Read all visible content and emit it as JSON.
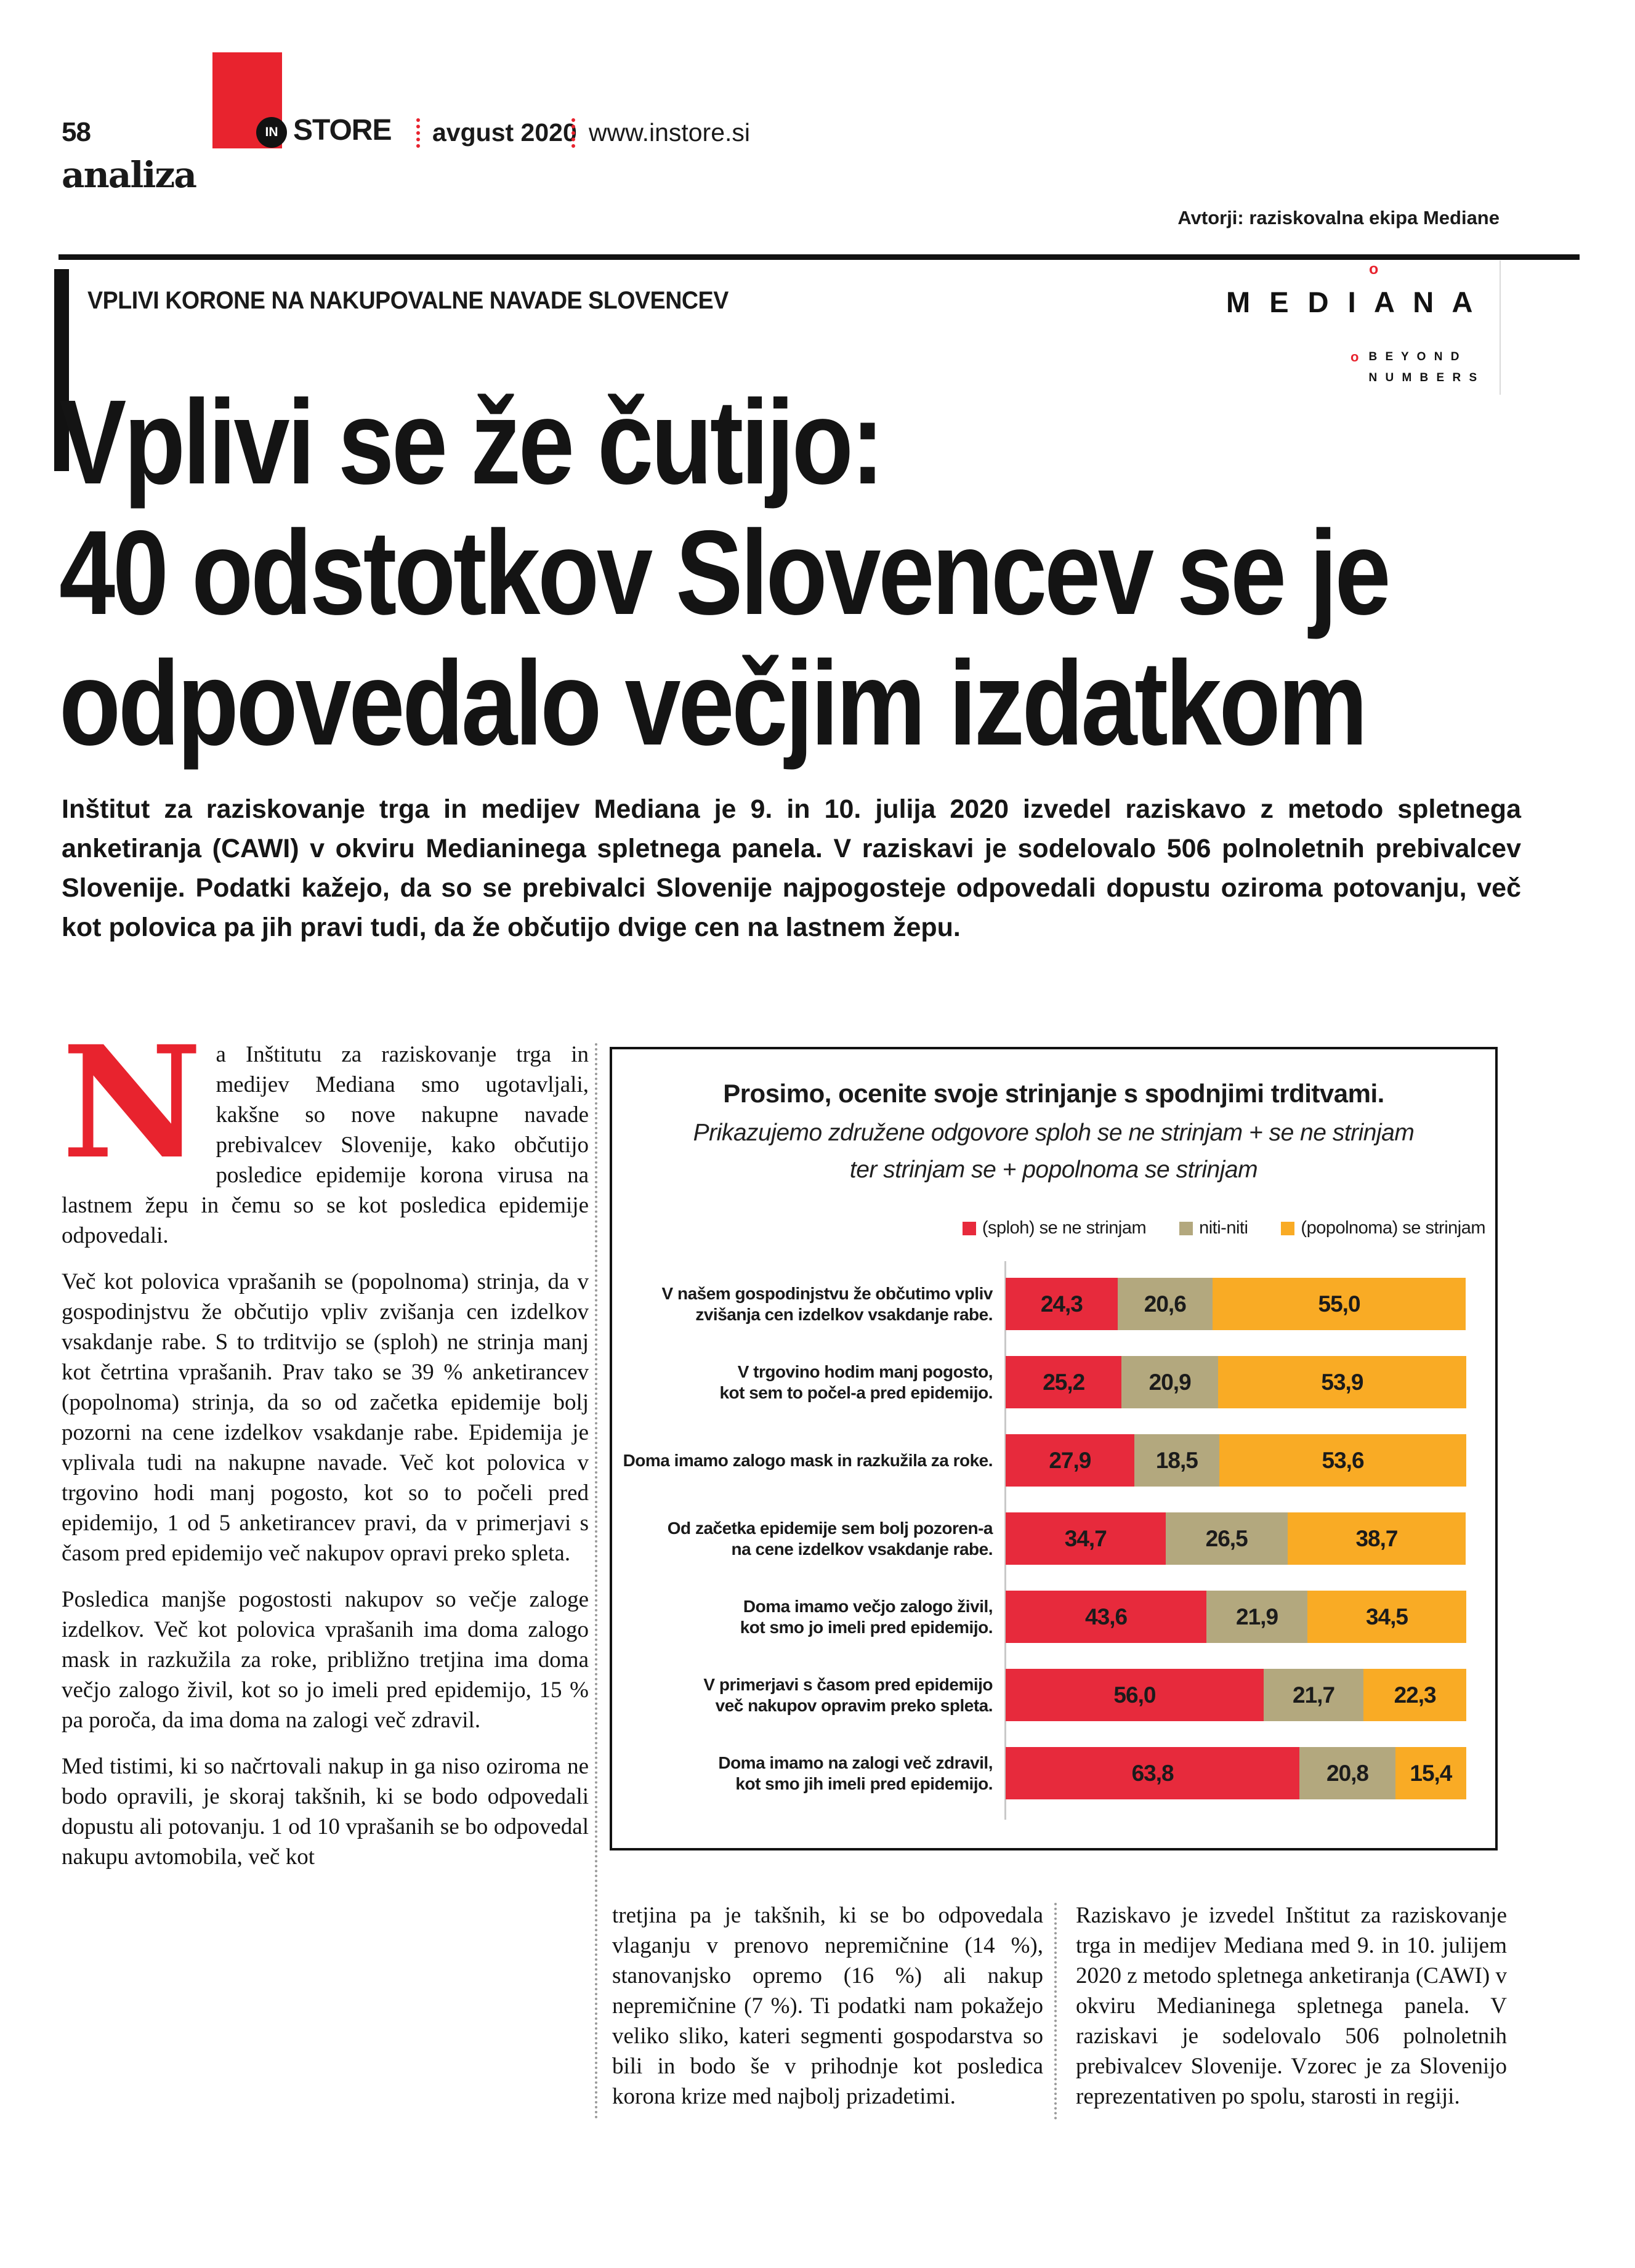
{
  "colors": {
    "brand_red": "#e8232e",
    "bar_red": "#e72a3c",
    "bar_khaki": "#b3a87e",
    "bar_orange": "#f9ab25",
    "ink": "#1a1a1a"
  },
  "header": {
    "page_number": "58",
    "brand_in": "IN",
    "brand_store": "STORE",
    "issue": "avgust 2020",
    "website": "www.instore.si",
    "section": "analiza",
    "authors": "Avtorji: raziskovalna ekipa Mediane"
  },
  "kicker": "VPLIVI KORONE NA NAKUPOVALNE NAVADE SLOVENCEV",
  "mediana_logo": {
    "dot": "o",
    "name_letters": "M E D I A N A",
    "tagline_line1": "B E Y O N D",
    "tagline_line2": "N U M B E R S"
  },
  "headline": {
    "line1": "Vplivi se že čutijo:",
    "line2": "40 odstotkov Slovencev se je",
    "line3": "odpovedalo večjim izdatkom"
  },
  "lead": "Inštitut za raziskovanje trga in medijev Mediana je 9. in 10. julija 2020 izvedel raziskavo z metodo spletnega anketiranja (CAWI) v okviru Medianinega spletnega panela. V raziskavi je sodelovalo 506 polnoletnih prebivalcev Slovenije. Podatki kažejo, da so se prebivalci Slovenije najpogosteje odpovedali dopustu oziroma potovanju, več kot polovica pa jih pravi tudi, da že občutijo dvige cen na lastnem žepu.",
  "article": {
    "dropcap": "N",
    "p1": "a Inštitutu za raziskovanje trga in medijev Mediana smo ugotavljali, kakšne so nove nakupne navade prebivalcev Slovenije, kako občutijo posledice epidemije korona virusa na lastnem žepu in čemu so se kot posledica epidemije odpovedali.",
    "p2": "Več kot polovica vprašanih se (popolnoma) strinja, da v gospodinjstvu že občutijo vpliv zvišanja cen izdelkov vsakdanje rabe. S to trditvijo se (sploh) ne strinja manj kot četrtina vprašanih. Prav tako se 39 % anketirancev (popolnoma) strinja, da so od začetka epidemije bolj pozorni na cene izdelkov vsakdanje rabe. Epidemija je vplivala tudi na nakupne navade. Več kot polovica v trgovino hodi manj pogosto, kot so to počeli pred epidemijo, 1 od 5 anketirancev pravi, da v primerjavi s časom pred epidemijo več nakupov opravi preko spleta.",
    "p3": "Posledica manjše pogostosti nakupov so večje zaloge izdelkov. Več kot polovica vprašanih ima doma zalogo mask in razkužila za roke, približno tretjina ima doma večjo zalogo živil, kot so jo imeli pred epidemijo, 15 % pa poroča, da ima doma na zalogi več zdravil.",
    "p4": "Med tistimi, ki so načrtovali nakup in ga niso oziroma ne bodo opravili, je skoraj takšnih, ki se bodo odpovedali dopustu ali potovanju. 1 od 10 vprašanih se bo odpovedal nakupu avtomobila, več kot",
    "bottom_middle": "tretjina pa je takšnih, ki se bo odpovedala vlaganju v prenovo nepremičnine (14 %), stanovanjsko opremo (16 %) ali nakup nepremičnine (7 %). Ti podatki nam pokažejo veliko sliko, kateri segmenti gospodarstva so bili in bodo še v prihodnje kot posledica korona krize med najbolj prizadetimi.",
    "bottom_right": "Raziskavo je izvedel Inštitut za raziskovanje trga in medijev Mediana med 9. in 10. julijem 2020 z metodo spletnega anketiranja (CAWI) v okviru Medianinega spletnega panela. V raziskavi je sodelovalo 506 polnoletnih prebivalcev Slovenije. Vzorec je za Slovenijo reprezentativen po spolu, starosti in regiji."
  },
  "chart_data": {
    "type": "bar",
    "orientation": "horizontal_stacked",
    "title": "Prosimo, ocenite svoje strinjanje s spodnjimi trditvami.",
    "subtitle_lines": [
      "Prikazujemo združene odgovore sploh se ne strinjam + se ne strinjam",
      "ter strinjam se + popolnoma se strinjam"
    ],
    "legend_position": "top-right",
    "xlim": [
      0,
      100
    ],
    "unit": "%",
    "grid": false,
    "legend": [
      {
        "label": "(sploh) se ne strinjam",
        "color": "#e72a3c"
      },
      {
        "label": "niti-niti",
        "color": "#b3a87e"
      },
      {
        "label": "(popolnoma) se strinjam",
        "color": "#f9ab25"
      }
    ],
    "categories": [
      [
        "V našem gospodinjstvu že občutimo vpliv",
        "zvišanja cen izdelkov vsakdanje rabe."
      ],
      [
        "V trgovino hodim manj pogosto,",
        "kot sem to počel-a pred epidemijo."
      ],
      [
        "Doma imamo zalogo mask in razkužila za roke."
      ],
      [
        "Od začetka epidemije sem bolj pozoren-a",
        "na cene izdelkov vsakdanje rabe."
      ],
      [
        "Doma imamo večjo zalogo živil,",
        "kot smo jo imeli pred epidemijo."
      ],
      [
        "V primerjavi s časom pred epidemijo",
        "več nakupov opravim preko spleta."
      ],
      [
        "Doma imamo na zalogi več zdravil,",
        "kot smo jih imeli pred epidemijo."
      ]
    ],
    "series": [
      {
        "name": "(sploh) se ne strinjam",
        "color": "#e72a3c",
        "values": [
          24.3,
          25.2,
          27.9,
          34.7,
          43.6,
          56.0,
          63.8
        ]
      },
      {
        "name": "niti-niti",
        "color": "#b3a87e",
        "values": [
          20.6,
          20.9,
          18.5,
          26.5,
          21.9,
          21.7,
          20.8
        ]
      },
      {
        "name": "(popolnoma) se strinjam",
        "color": "#f9ab25",
        "values": [
          55.0,
          53.9,
          53.6,
          38.7,
          34.5,
          22.3,
          15.4
        ]
      }
    ],
    "value_labels": [
      [
        "24,3",
        "20,6",
        "55,0"
      ],
      [
        "25,2",
        "20,9",
        "53,9"
      ],
      [
        "27,9",
        "18,5",
        "53,6"
      ],
      [
        "34,7",
        "26,5",
        "38,7"
      ],
      [
        "43,6",
        "21,9",
        "34,5"
      ],
      [
        "56,0",
        "21,7",
        "22,3"
      ],
      [
        "63,8",
        "20,8",
        "15,4"
      ]
    ]
  }
}
